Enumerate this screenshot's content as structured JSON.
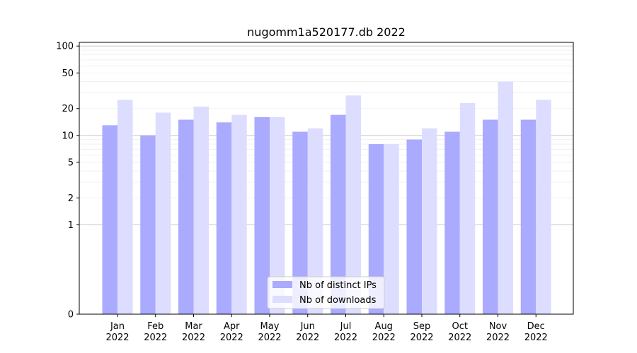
{
  "chart_data": {
    "type": "bar",
    "title": "nugomm1a520177.db 2022",
    "xlabel": "",
    "ylabel": "",
    "y_scale": "symlog",
    "ylim": [
      0,
      110
    ],
    "y_ticks": [
      0,
      1,
      2,
      5,
      10,
      20,
      50,
      100
    ],
    "categories": [
      "Jan\n2022",
      "Feb\n2022",
      "Mar\n2022",
      "Apr\n2022",
      "May\n2022",
      "Jun\n2022",
      "Jul\n2022",
      "Aug\n2022",
      "Sep\n2022",
      "Oct\n2022",
      "Nov\n2022",
      "Dec\n2022"
    ],
    "series": [
      {
        "name": "Nb of distinct IPs",
        "color": "#aaaaff",
        "values": [
          13,
          10,
          15,
          14,
          16,
          11,
          17,
          8,
          9,
          11,
          15,
          15
        ]
      },
      {
        "name": "Nb of downloads",
        "color": "#ddddff",
        "values": [
          25,
          18,
          21,
          17,
          16,
          12,
          28,
          8,
          12,
          23,
          40,
          25
        ]
      }
    ],
    "grid": true,
    "legend_position": "bottom-center"
  }
}
